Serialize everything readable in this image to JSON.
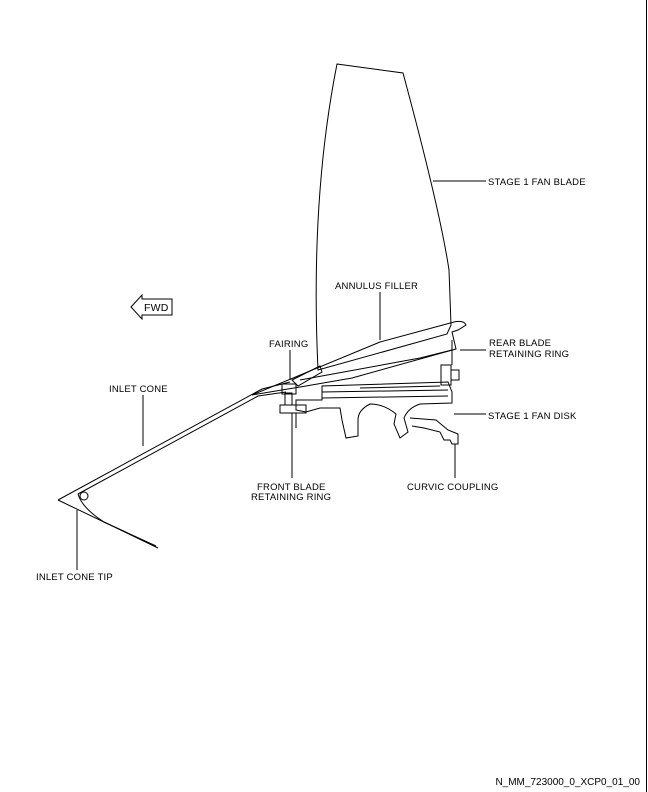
{
  "labels": {
    "stage1_fan_blade": "STAGE 1 FAN BLADE",
    "annulus_filler": "ANNULUS FILLER",
    "fwd": "FWD",
    "fairing": "FAIRING",
    "rear_blade_retaining_ring_line1": "REAR BLADE",
    "rear_blade_retaining_ring_line2": "RETAINING RING",
    "inlet_cone": "INLET CONE",
    "stage1_fan_disk": "STAGE 1 FAN DISK",
    "front_blade_retaining_ring_line1": "FRONT BLADE",
    "front_blade_retaining_ring_line2": "RETAINING RING",
    "curvic_coupling": "CURVIC COUPLING",
    "inlet_cone_tip": "INLET CONE TIP"
  },
  "figure_id": "N_MM_723000_0_XCP0_01_00",
  "colors": {
    "line": "#000000",
    "background": "#ffffff"
  }
}
